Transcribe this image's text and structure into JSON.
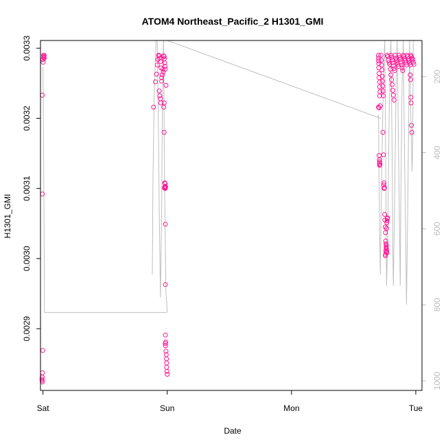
{
  "chart_data": {
    "type": "scatter",
    "title": "ATOM4 Northeast_Pacific_2 H1301_GMI",
    "xlabel": "Date",
    "ylabel": "H1301_GMI",
    "x_ticks": [
      "Sat",
      "Sun",
      "Mon",
      "Tue"
    ],
    "x_range_days": [
      -0.02,
      3.05
    ],
    "ylim": [
      0.002812,
      0.003311
    ],
    "y_ticks": [
      "0.0029",
      "0.0030",
      "0.0031",
      "0.0032",
      "0.0033"
    ],
    "y_tick_values": [
      0.0029,
      0.003,
      0.0031,
      0.0032,
      0.0033
    ],
    "y2_ticks": [
      "200",
      "400",
      "600",
      "800",
      "1000"
    ],
    "y2_tick_values": [
      200,
      400,
      600,
      800,
      1000
    ],
    "y2lim": [
      1025,
      105
    ],
    "series_color": "#ff1493",
    "line_color": "#bebebe",
    "points": [
      [
        0.005,
        0.00329
      ],
      [
        0.008,
        0.003288
      ],
      [
        0.01,
        0.003286
      ],
      [
        0.0,
        0.003284
      ],
      [
        0.002,
        0.00328
      ],
      [
        0.006,
        0.003287
      ],
      [
        0.009,
        0.00329
      ],
      [
        -0.005,
        0.003233
      ],
      [
        -0.005,
        0.003092
      ],
      [
        -0.002,
        0.002869
      ],
      [
        -0.004,
        0.002837
      ],
      [
        -0.006,
        0.002831
      ],
      [
        -0.008,
        0.002828
      ],
      [
        -0.007,
        0.002826
      ],
      [
        -0.005,
        0.002824
      ],
      [
        0.89,
        0.003216
      ],
      [
        0.905,
        0.003252
      ],
      [
        0.915,
        0.003263
      ],
      [
        0.92,
        0.003276
      ],
      [
        0.925,
        0.003284
      ],
      [
        0.93,
        0.00329
      ],
      [
        0.935,
        0.003289
      ],
      [
        0.94,
        0.003286
      ],
      [
        0.945,
        0.003281
      ],
      [
        0.95,
        0.003272
      ],
      [
        0.955,
        0.003258
      ],
      [
        0.935,
        0.003239
      ],
      [
        0.94,
        0.003232
      ],
      [
        0.945,
        0.003228
      ],
      [
        0.948,
        0.003222
      ],
      [
        0.955,
        0.003253
      ],
      [
        0.96,
        0.003262
      ],
      [
        0.965,
        0.00327
      ],
      [
        0.97,
        0.003289
      ],
      [
        0.975,
        0.003288
      ],
      [
        0.977,
        0.003285
      ],
      [
        0.98,
        0.003279
      ],
      [
        0.982,
        0.003274
      ],
      [
        0.984,
        0.00327
      ],
      [
        0.972,
        0.003216
      ],
      [
        0.975,
        0.003222
      ],
      [
        0.968,
        0.003266
      ],
      [
        0.99,
        0.003247
      ],
      [
        0.975,
        0.00318
      ],
      [
        0.98,
        0.003108
      ],
      [
        0.983,
        0.003103
      ],
      [
        0.985,
        0.003101
      ],
      [
        0.987,
        0.003102
      ],
      [
        0.982,
        0.0031
      ],
      [
        0.978,
        0.003101
      ],
      [
        0.984,
        0.003107
      ],
      [
        0.985,
        0.003049
      ],
      [
        0.985,
        0.002963
      ],
      [
        0.985,
        0.002891
      ],
      [
        0.988,
        0.002881
      ],
      [
        0.984,
        0.002879
      ],
      [
        0.986,
        0.002876
      ],
      [
        0.99,
        0.002868
      ],
      [
        0.992,
        0.002863
      ],
      [
        0.994,
        0.002857
      ],
      [
        0.995,
        0.002851
      ],
      [
        0.995,
        0.002845
      ],
      [
        0.997,
        0.002839
      ],
      [
        1.0,
        0.002835
      ],
      [
        2.7,
        0.00329
      ],
      [
        2.7,
        0.003286
      ],
      [
        2.7,
        0.003282
      ],
      [
        2.702,
        0.003278
      ],
      [
        2.702,
        0.003272
      ],
      [
        2.705,
        0.003264
      ],
      [
        2.705,
        0.003258
      ],
      [
        2.71,
        0.003252
      ],
      [
        2.71,
        0.003245
      ],
      [
        2.712,
        0.003238
      ],
      [
        2.71,
        0.003232
      ],
      [
        2.714,
        0.003218
      ],
      [
        2.7,
        0.003216
      ],
      [
        2.705,
        0.003215
      ],
      [
        2.705,
        0.003147
      ],
      [
        2.707,
        0.003141
      ],
      [
        2.708,
        0.003138
      ],
      [
        2.709,
        0.003136
      ],
      [
        2.709,
        0.003133
      ],
      [
        2.712,
        0.003134
      ],
      [
        2.72,
        0.00329
      ],
      [
        2.722,
        0.003283
      ],
      [
        2.725,
        0.003276
      ],
      [
        2.728,
        0.003269
      ],
      [
        2.73,
        0.00326
      ],
      [
        2.732,
        0.003253
      ],
      [
        2.734,
        0.003246
      ],
      [
        2.736,
        0.003239
      ],
      [
        2.738,
        0.003232
      ],
      [
        2.735,
        0.00318
      ],
      [
        2.74,
        0.003148
      ],
      [
        2.742,
        0.003105
      ],
      [
        2.744,
        0.003108
      ],
      [
        2.746,
        0.0031
      ],
      [
        2.748,
        0.003101
      ],
      [
        2.75,
        0.003063
      ],
      [
        2.752,
        0.003055
      ],
      [
        2.754,
        0.003045
      ],
      [
        2.756,
        0.003037
      ],
      [
        2.758,
        0.003025
      ],
      [
        2.76,
        0.003021
      ],
      [
        2.762,
        0.003017
      ],
      [
        2.764,
        0.003014
      ],
      [
        2.766,
        0.00301
      ],
      [
        2.768,
        0.003008
      ],
      [
        2.755,
        0.003004
      ],
      [
        2.757,
        0.003006
      ],
      [
        2.759,
        0.003011
      ],
      [
        2.761,
        0.003015
      ],
      [
        2.763,
        0.003019
      ],
      [
        2.765,
        0.003043
      ],
      [
        2.767,
        0.003051
      ],
      [
        2.769,
        0.003054
      ],
      [
        2.771,
        0.003057
      ],
      [
        2.773,
        0.003058
      ],
      [
        2.77,
        0.00329
      ],
      [
        2.775,
        0.003288
      ],
      [
        2.78,
        0.003283
      ],
      [
        2.785,
        0.00328
      ],
      [
        2.79,
        0.003277
      ],
      [
        2.795,
        0.00327
      ],
      [
        2.8,
        0.003262
      ],
      [
        2.805,
        0.003255
      ],
      [
        2.81,
        0.003248
      ],
      [
        2.815,
        0.00324
      ],
      [
        2.82,
        0.003233
      ],
      [
        2.825,
        0.003226
      ],
      [
        2.8,
        0.00329
      ],
      [
        2.805,
        0.003287
      ],
      [
        2.81,
        0.003283
      ],
      [
        2.815,
        0.003279
      ],
      [
        2.82,
        0.003275
      ],
      [
        2.825,
        0.003271
      ],
      [
        2.83,
        0.003268
      ],
      [
        2.835,
        0.00329
      ],
      [
        2.84,
        0.003286
      ],
      [
        2.845,
        0.003283
      ],
      [
        2.85,
        0.00328
      ],
      [
        2.855,
        0.003277
      ],
      [
        2.86,
        0.003274
      ],
      [
        2.865,
        0.00329
      ],
      [
        2.87,
        0.003287
      ],
      [
        2.875,
        0.003284
      ],
      [
        2.88,
        0.00328
      ],
      [
        2.885,
        0.003276
      ],
      [
        2.89,
        0.003272
      ],
      [
        2.895,
        0.003268
      ],
      [
        2.9,
        0.00329
      ],
      [
        2.905,
        0.003288
      ],
      [
        2.91,
        0.003285
      ],
      [
        2.915,
        0.003282
      ],
      [
        2.92,
        0.003279
      ],
      [
        2.925,
        0.003276
      ],
      [
        2.93,
        0.00329
      ],
      [
        2.935,
        0.003288
      ],
      [
        2.94,
        0.003285
      ],
      [
        2.945,
        0.003282
      ],
      [
        2.95,
        0.003279
      ],
      [
        2.955,
        0.003276
      ],
      [
        2.96,
        0.00329
      ],
      [
        2.965,
        0.003288
      ],
      [
        2.97,
        0.003286
      ],
      [
        2.975,
        0.003284
      ],
      [
        2.98,
        0.00328
      ],
      [
        2.985,
        0.003277
      ],
      [
        2.955,
        0.003262
      ],
      [
        2.958,
        0.003255
      ],
      [
        2.96,
        0.00323
      ],
      [
        2.962,
        0.003222
      ],
      [
        2.965,
        0.00319
      ],
      [
        2.968,
        0.00318
      ]
    ],
    "profile_lines": [
      [
        [
          0.0,
          175
        ],
        [
          0.005,
          380
        ],
        [
          0.01,
          660
        ],
        [
          0.012,
          820
        ],
        [
          0.015,
          820
        ],
        [
          0.98,
          820
        ],
        [
          0.995,
          820
        ]
      ],
      [
        [
          0.88,
          720
        ],
        [
          0.885,
          480
        ],
        [
          0.895,
          250
        ],
        [
          0.91,
          105
        ],
        [
          0.92,
          105
        ],
        [
          0.93,
          370
        ],
        [
          0.935,
          540
        ],
        [
          0.945,
          780
        ],
        [
          0.955,
          560
        ],
        [
          0.96,
          320
        ],
        [
          0.965,
          180
        ],
        [
          0.97,
          105
        ]
      ],
      [
        [
          0.97,
          105
        ],
        [
          0.98,
          520
        ],
        [
          0.99,
          770
        ],
        [
          0.995,
          790
        ],
        [
          1.0,
          820
        ]
      ],
      [
        [
          0.96,
          105
        ],
        [
          1.0,
          105
        ],
        [
          2.72,
          310
        ]
      ],
      [
        [
          2.7,
          300
        ],
        [
          2.705,
          480
        ],
        [
          2.71,
          620
        ],
        [
          2.715,
          720
        ],
        [
          2.72,
          600
        ],
        [
          2.73,
          380
        ],
        [
          2.74,
          200
        ],
        [
          2.75,
          105
        ],
        [
          2.755,
          280
        ],
        [
          2.76,
          560
        ],
        [
          2.765,
          750
        ],
        [
          2.775,
          600
        ],
        [
          2.785,
          320
        ],
        [
          2.795,
          150
        ],
        [
          2.8,
          105
        ],
        [
          2.81,
          400
        ],
        [
          2.815,
          650
        ],
        [
          2.82,
          750
        ],
        [
          2.83,
          520
        ],
        [
          2.84,
          250
        ],
        [
          2.85,
          105
        ],
        [
          2.86,
          360
        ],
        [
          2.87,
          620
        ],
        [
          2.875,
          750
        ],
        [
          2.88,
          520
        ],
        [
          2.89,
          220
        ],
        [
          2.9,
          105
        ],
        [
          2.91,
          420
        ],
        [
          2.92,
          650
        ],
        [
          2.925,
          800
        ],
        [
          2.935,
          550
        ],
        [
          2.945,
          250
        ],
        [
          2.95,
          105
        ],
        [
          2.96,
          300
        ],
        [
          2.97,
          450
        ],
        [
          2.975,
          380
        ],
        [
          2.98,
          105
        ]
      ]
    ]
  }
}
